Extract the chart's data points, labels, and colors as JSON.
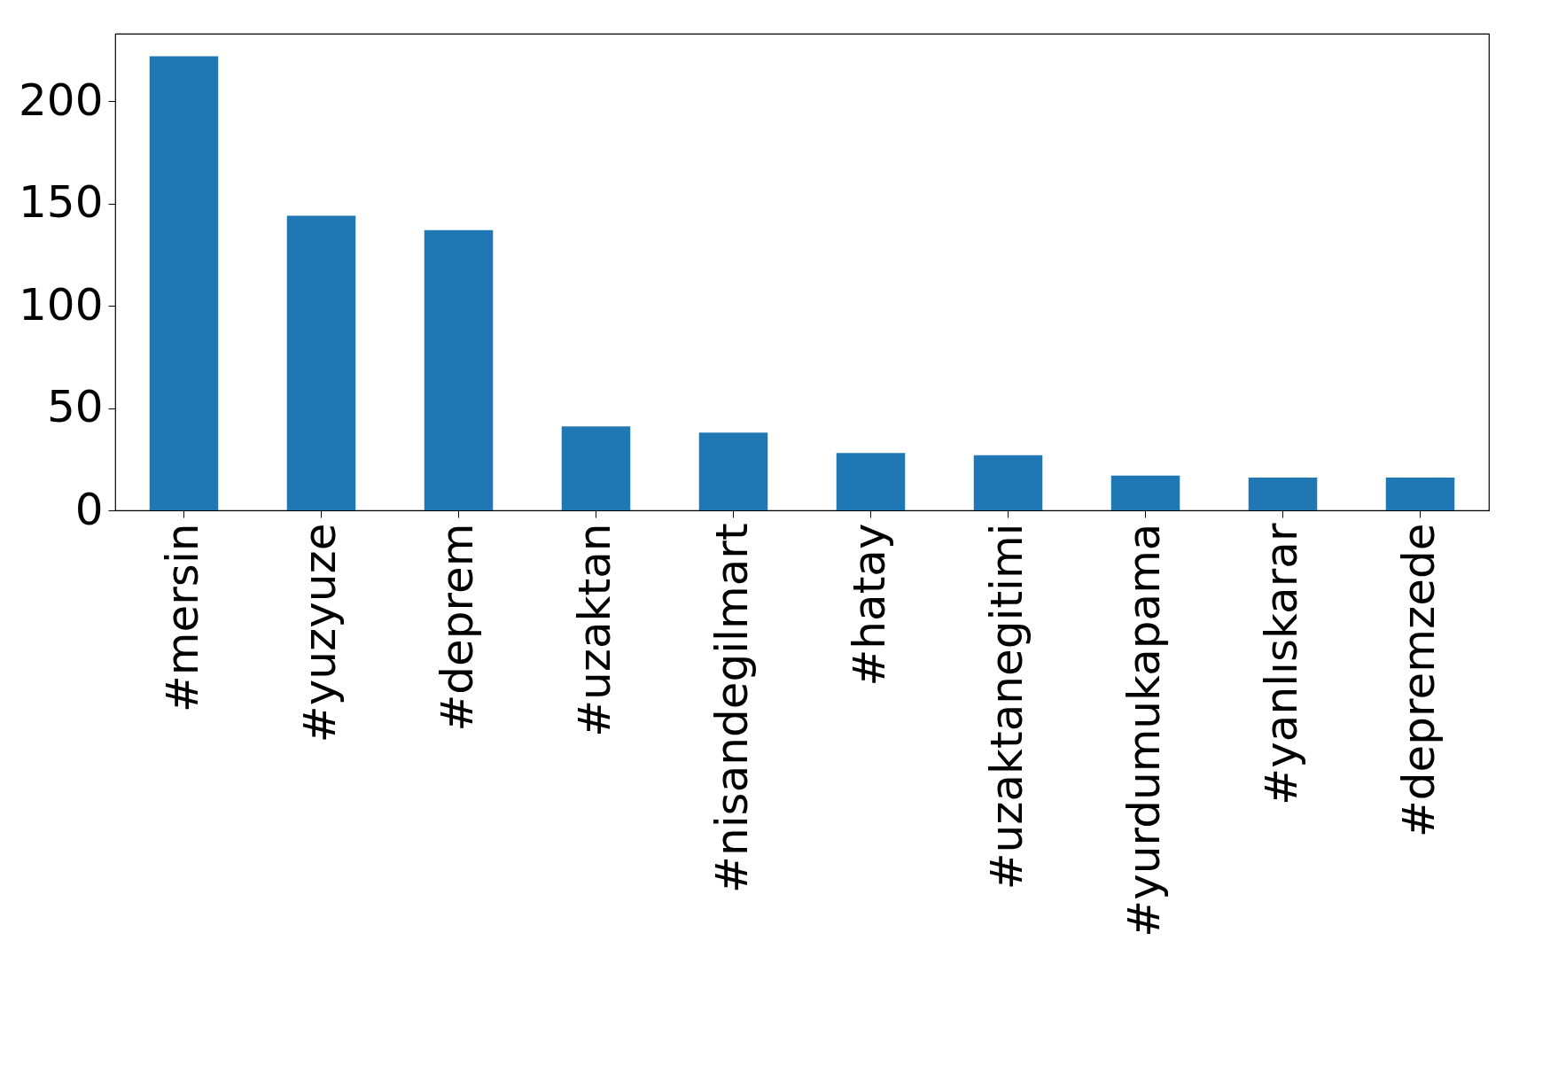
{
  "chart_data": {
    "type": "bar",
    "categories": [
      "#mersin",
      "#yuzyuze",
      "#deprem",
      "#uzaktan",
      "#nisandegilmart",
      "#hatay",
      "#uzaktanegitimi",
      "#yurdumukapama",
      "#yanlıskarar",
      "#depremzede"
    ],
    "values": [
      222,
      144,
      137,
      41,
      38,
      28,
      27,
      17,
      16,
      16
    ],
    "color": "#1f77b4",
    "ylim": [
      0,
      233
    ],
    "yticks": [
      0,
      50,
      100,
      150,
      200
    ],
    "grid": false
  }
}
